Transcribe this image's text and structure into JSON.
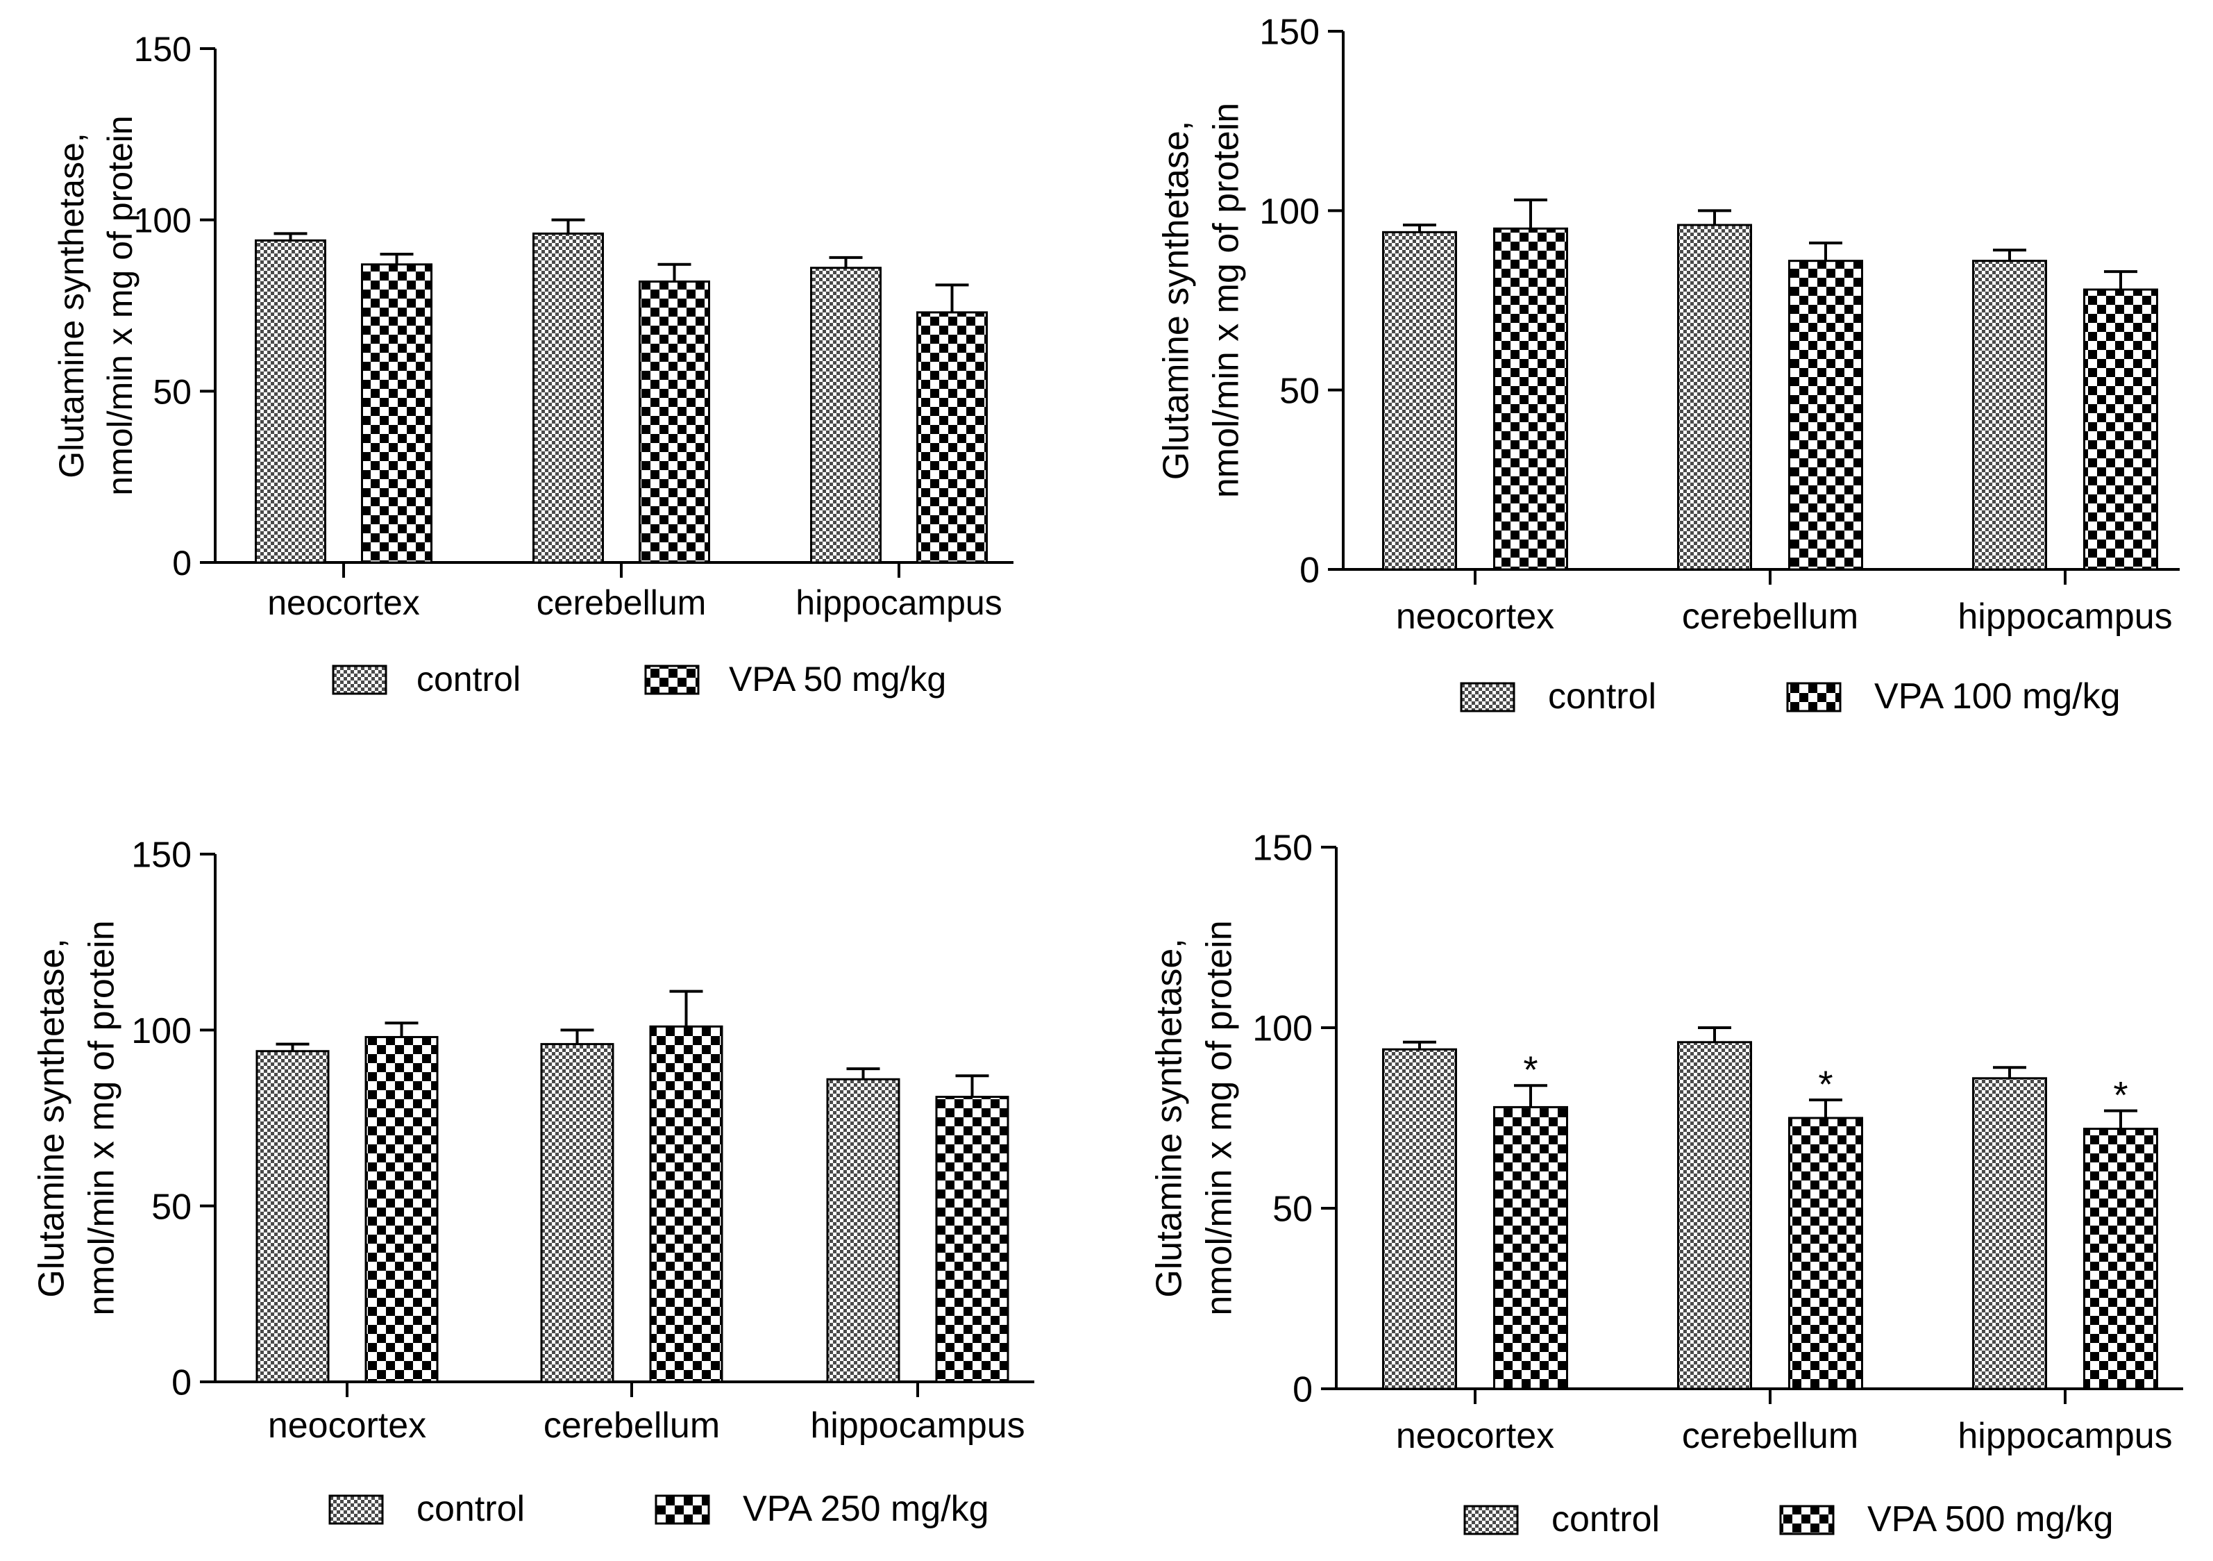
{
  "figure": {
    "ylabel_line1": "Glutamine synthetase,",
    "ylabel_line2": "nmol/min x mg of protein",
    "control_label": "control"
  },
  "chart_data": [
    {
      "type": "bar",
      "panel": "top-left",
      "categories": [
        "neocortex",
        "cerebellum",
        "hippocampus"
      ],
      "ylim": [
        0,
        150
      ],
      "yticks": [
        0,
        50,
        100,
        150
      ],
      "ylabel": "Glutamine synthetase, nmol/min x mg of protein",
      "legend_position": "bottom",
      "series": [
        {
          "name": "control",
          "values": [
            94,
            96,
            86
          ],
          "errors": [
            2,
            4,
            3
          ],
          "significant": [
            false,
            false,
            false
          ]
        },
        {
          "name": "VPA 50 mg/kg",
          "values": [
            87,
            82,
            73
          ],
          "errors": [
            3,
            5,
            8
          ],
          "significant": [
            false,
            false,
            false
          ]
        }
      ]
    },
    {
      "type": "bar",
      "panel": "top-right",
      "categories": [
        "neocortex",
        "cerebellum",
        "hippocampus"
      ],
      "ylim": [
        0,
        150
      ],
      "yticks": [
        0,
        50,
        100,
        150
      ],
      "ylabel": "Glutamine synthetase, nmol/min x mg of protein",
      "legend_position": "bottom",
      "series": [
        {
          "name": "control",
          "values": [
            94,
            96,
            86
          ],
          "errors": [
            2,
            4,
            3
          ],
          "significant": [
            false,
            false,
            false
          ]
        },
        {
          "name": "VPA 100 mg/kg",
          "values": [
            95,
            86,
            78
          ],
          "errors": [
            8,
            5,
            5
          ],
          "significant": [
            false,
            false,
            false
          ]
        }
      ]
    },
    {
      "type": "bar",
      "panel": "bottom-left",
      "categories": [
        "neocortex",
        "cerebellum",
        "hippocampus"
      ],
      "ylim": [
        0,
        150
      ],
      "yticks": [
        0,
        50,
        100,
        150
      ],
      "ylabel": "Glutamine synthetase, nmol/min x mg of protein",
      "legend_position": "bottom",
      "series": [
        {
          "name": "control",
          "values": [
            94,
            96,
            86
          ],
          "errors": [
            2,
            4,
            3
          ],
          "significant": [
            false,
            false,
            false
          ]
        },
        {
          "name": "VPA 250 mg/kg",
          "values": [
            98,
            101,
            81
          ],
          "errors": [
            4,
            10,
            6
          ],
          "significant": [
            false,
            false,
            false
          ]
        }
      ]
    },
    {
      "type": "bar",
      "panel": "bottom-right",
      "categories": [
        "neocortex",
        "cerebellum",
        "hippocampus"
      ],
      "ylim": [
        0,
        150
      ],
      "yticks": [
        0,
        50,
        100,
        150
      ],
      "ylabel": "Glutamine synthetase, nmol/min x mg of protein",
      "legend_position": "bottom",
      "significance_marker": "*",
      "series": [
        {
          "name": "control",
          "values": [
            94,
            96,
            86
          ],
          "errors": [
            2,
            4,
            3
          ],
          "significant": [
            false,
            false,
            false
          ]
        },
        {
          "name": "VPA 500 mg/kg",
          "values": [
            78,
            75,
            72
          ],
          "errors": [
            6,
            5,
            5
          ],
          "significant": [
            true,
            true,
            true
          ]
        }
      ]
    }
  ]
}
